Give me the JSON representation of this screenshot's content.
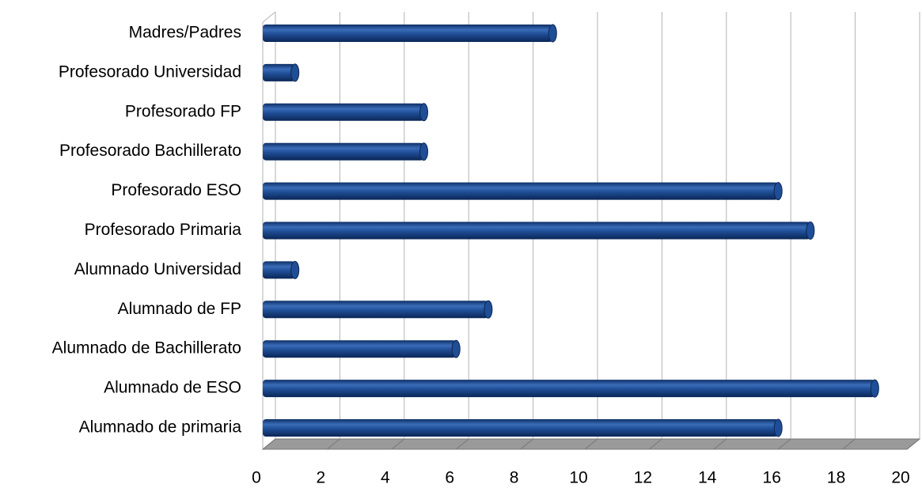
{
  "chart_data": {
    "type": "bar",
    "orientation": "horizontal",
    "categories": [
      "Madres/Padres",
      "Profesorado Universidad",
      "Profesorado FP",
      "Profesorado Bachillerato",
      "Profesorado ESO",
      "Profesorado Primaria",
      "Alumnado Universidad",
      "Alumnado de FP",
      "Alumnado de Bachillerato",
      "Alumnado de ESO",
      "Alumnado de primaria"
    ],
    "values": [
      9,
      1,
      5,
      5,
      16,
      17,
      1,
      7,
      6,
      19,
      16
    ],
    "color": "#1f4e96",
    "xlim": [
      0,
      20
    ],
    "xticks": [
      0,
      2,
      4,
      6,
      8,
      10,
      12,
      14,
      16,
      18,
      20
    ],
    "grid": true
  }
}
